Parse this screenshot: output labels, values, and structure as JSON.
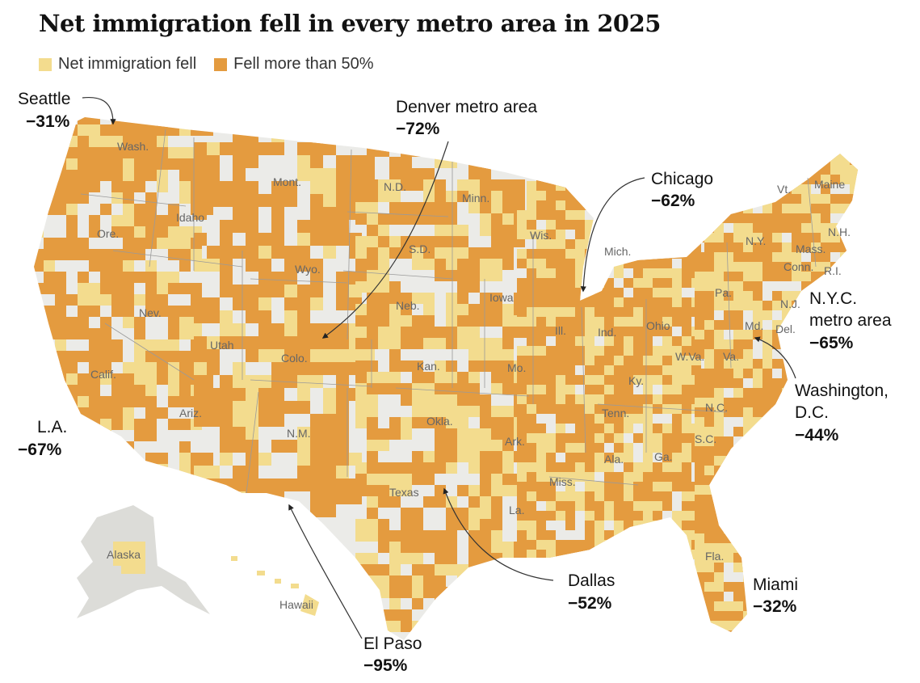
{
  "title": "Net immigration fell in every metro area in 2025",
  "legend": [
    {
      "label": "Net immigration fell",
      "color": "#f3dc8e"
    },
    {
      "label": "Fell more than 50%",
      "color": "#e49b3f"
    }
  ],
  "colors": {
    "land": "#ebebe8",
    "border": "#9a9a9a"
  },
  "state_labels": [
    "Wash.",
    "Mont.",
    "N.D.",
    "Minn.",
    "Ore.",
    "Idaho",
    "S.D.",
    "Wis.",
    "Mich.",
    "Wyo.",
    "Neb.",
    "Iowa",
    "Nev.",
    "Utah",
    "Colo.",
    "Ill.",
    "Ind.",
    "Ohio",
    "Pa.",
    "N.Y.",
    "Vt.",
    "Maine",
    "N.H.",
    "Mass.",
    "Conn.",
    "R.I.",
    "N.J.",
    "Md.",
    "Del.",
    "Calif.",
    "Kan.",
    "Mo.",
    "W.Va.",
    "Va.",
    "Ky.",
    "Ariz.",
    "N.M.",
    "Okla.",
    "Tenn.",
    "N.C.",
    "Ark.",
    "S.C.",
    "Ala.",
    "Ga.",
    "Miss.",
    "Texas",
    "La.",
    "Fla.",
    "Alaska",
    "Hawaii"
  ],
  "callouts": [
    {
      "name": "Seattle",
      "value": "−31%"
    },
    {
      "name": "Denver metro area",
      "value": "−72%"
    },
    {
      "name": "Chicago",
      "value": "−62%"
    },
    {
      "name": "N.Y.C.",
      "name2": "metro area",
      "value": "−65%"
    },
    {
      "name": "Washington,",
      "name2": "D.C.",
      "value": "−44%"
    },
    {
      "name": "L.A.",
      "value": "−67%"
    },
    {
      "name": "Dallas",
      "value": "−52%"
    },
    {
      "name": "Miami",
      "value": "−32%"
    },
    {
      "name": "El Paso",
      "value": "−95%"
    }
  ]
}
